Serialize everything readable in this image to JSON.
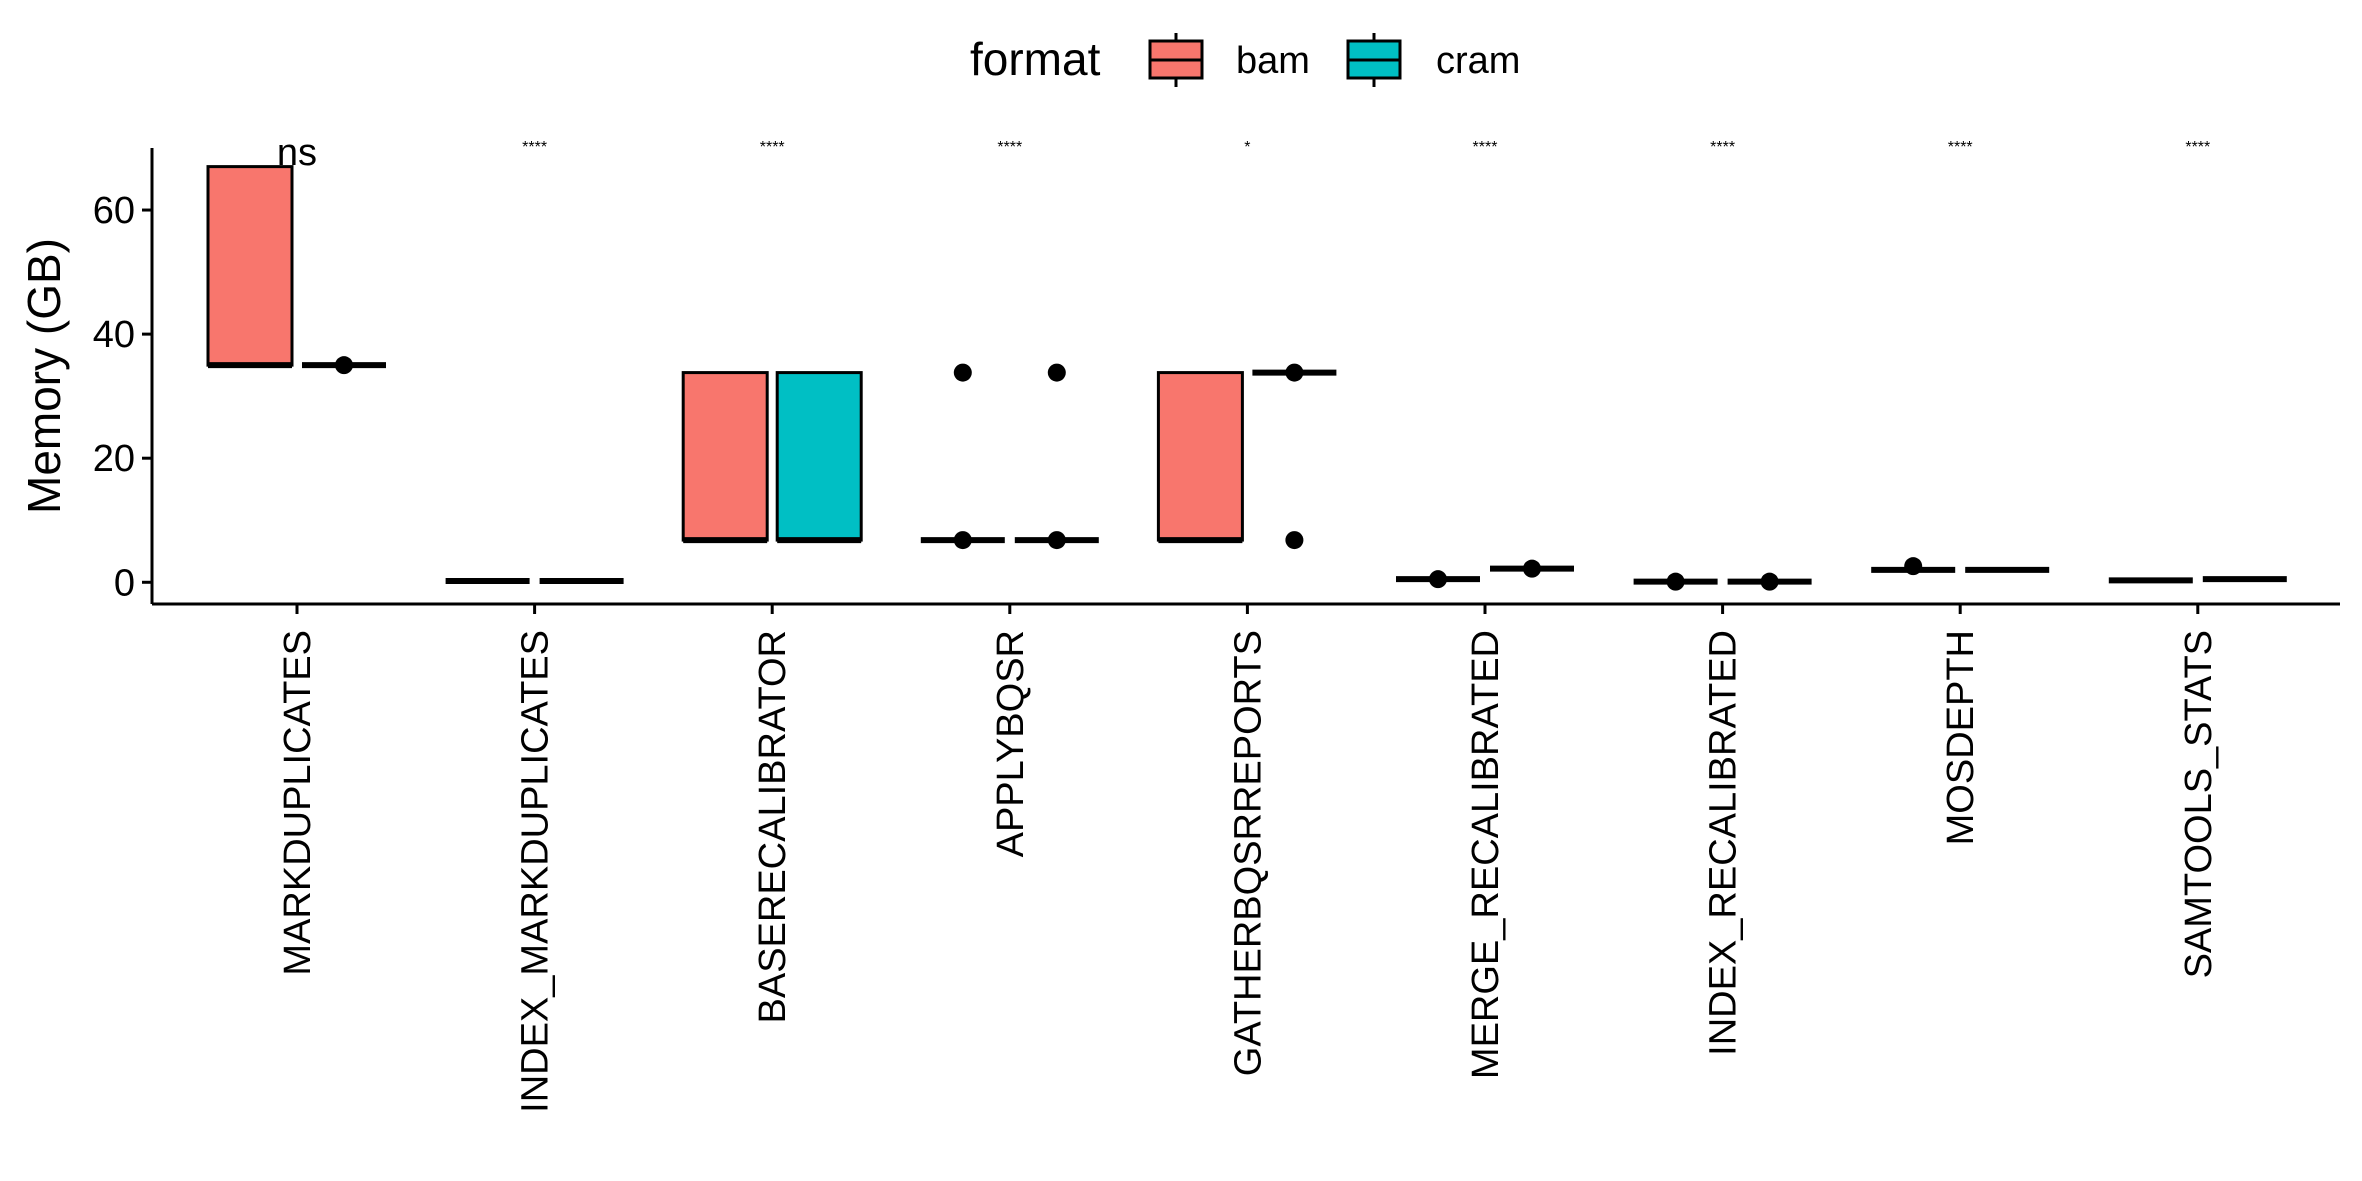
{
  "chart_data": {
    "type": "box",
    "title": "",
    "xlabel": "",
    "ylabel": "Memory (GB)",
    "ylim": [
      -3.5,
      70
    ],
    "yticks": [
      0,
      20,
      40,
      60
    ],
    "legend": {
      "title": "format",
      "position": "top",
      "entries": [
        {
          "name": "bam",
          "color": "#F8766D"
        },
        {
          "name": "cram",
          "color": "#00BFC4"
        }
      ]
    },
    "categories": [
      "MARKDUPLICATES",
      "INDEX_MARKDUPLICATES",
      "BASERECALIBRATOR",
      "APPLYBQSR",
      "GATHERBQSRREPORTS",
      "MERGE_RECALIBRATED",
      "INDEX_RECALIBRATED",
      "MOSDEPTH",
      "SAMTOOLS_STATS"
    ],
    "significance": [
      "ns",
      "****",
      "****",
      "****",
      "*",
      "****",
      "****",
      "****",
      "****"
    ],
    "series": [
      {
        "name": "bam",
        "boxes": [
          {
            "q1": 35,
            "median": 35,
            "q3": 67,
            "outliers": []
          },
          {
            "q1": 0.2,
            "median": 0.2,
            "q3": 0.2,
            "outliers": []
          },
          {
            "q1": 6.8,
            "median": 6.8,
            "q3": 33.8,
            "outliers": []
          },
          {
            "q1": 6.8,
            "median": 6.8,
            "q3": 6.8,
            "outliers": [
              6.8,
              33.8
            ]
          },
          {
            "q1": 6.8,
            "median": 6.8,
            "q3": 33.8,
            "outliers": []
          },
          {
            "q1": 0.5,
            "median": 0.5,
            "q3": 0.5,
            "outliers": [
              0.5
            ]
          },
          {
            "q1": 0.1,
            "median": 0.1,
            "q3": 0.1,
            "outliers": [
              0.1
            ]
          },
          {
            "q1": 2.0,
            "median": 2.0,
            "q3": 2.0,
            "outliers": [
              2.6
            ]
          },
          {
            "q1": 0.3,
            "median": 0.3,
            "q3": 0.3,
            "outliers": []
          }
        ]
      },
      {
        "name": "cram",
        "boxes": [
          {
            "q1": 35,
            "median": 35,
            "q3": 35,
            "outliers": [
              35
            ]
          },
          {
            "q1": 0.2,
            "median": 0.2,
            "q3": 0.2,
            "outliers": []
          },
          {
            "q1": 6.8,
            "median": 6.8,
            "q3": 33.8,
            "outliers": []
          },
          {
            "q1": 6.8,
            "median": 6.8,
            "q3": 6.8,
            "outliers": [
              6.8,
              33.8
            ]
          },
          {
            "q1": 33.8,
            "median": 33.8,
            "q3": 33.8,
            "outliers": [
              33.8,
              6.8
            ]
          },
          {
            "q1": 2.2,
            "median": 2.2,
            "q3": 2.2,
            "outliers": [
              2.2
            ]
          },
          {
            "q1": 0.1,
            "median": 0.1,
            "q3": 0.1,
            "outliers": [
              0.1
            ]
          },
          {
            "q1": 2.0,
            "median": 2.0,
            "q3": 2.0,
            "outliers": []
          },
          {
            "q1": 0.5,
            "median": 0.5,
            "q3": 0.5,
            "outliers": []
          }
        ]
      }
    ]
  }
}
